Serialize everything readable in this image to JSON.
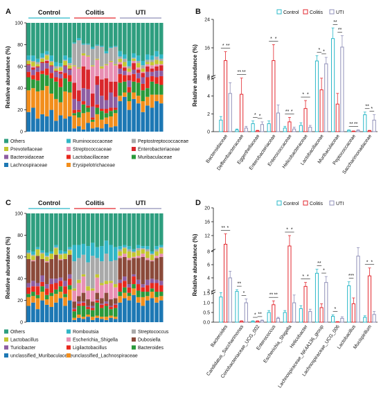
{
  "panel_labels": {
    "a": "A",
    "b": "B",
    "c": "C",
    "d": "D"
  },
  "chart_data": [
    {
      "panel": "A",
      "type": "bar",
      "stacked": true,
      "ylabel": "Relative abundance (%)",
      "ylim": [
        0,
        100
      ],
      "yticks": [
        "0",
        "20",
        "40",
        "60",
        "80",
        "100"
      ],
      "groups": [
        "Control",
        "Colitis",
        "UTI"
      ],
      "samples_per_group": 10,
      "legend": [
        "Others",
        "Ruminococcaceae",
        "Peptostreptococcaceae",
        "Prevotellaceae",
        "Streptococcaceae",
        "Enterobacteriaceae",
        "Bacteroidaceae",
        "Lactobacillaceae",
        "Muribaculaceae",
        "Lachnospiraceae",
        "Erysipelotrichaceae"
      ],
      "colors": [
        "#2e9e7f",
        "#31b6c6",
        "#a9a9a9",
        "#c4c631",
        "#e88fb3",
        "#d9262b",
        "#8e5ea2",
        "#e8281d",
        "#2a9a3b",
        "#1d78b4",
        "#f28e1c"
      ],
      "series": [
        {
          "name": "Lachnospiraceae",
          "values": [
            18,
            22,
            12,
            16,
            14,
            20,
            10,
            15,
            12,
            14,
            3,
            5,
            2,
            8,
            3,
            4,
            3,
            7,
            4,
            5,
            28,
            32,
            20,
            30,
            26,
            18,
            24,
            22,
            28,
            26
          ]
        },
        {
          "name": "Erysipelotrichaceae",
          "values": [
            20,
            18,
            25,
            22,
            28,
            15,
            20,
            12,
            25,
            22,
            12,
            8,
            15,
            10,
            6,
            12,
            8,
            6,
            10,
            12,
            5,
            4,
            8,
            6,
            7,
            10,
            8,
            12,
            6,
            8
          ]
        },
        {
          "name": "Muribaculaceae",
          "values": [
            12,
            8,
            10,
            15,
            10,
            14,
            16,
            14,
            12,
            10,
            2,
            5,
            8,
            4,
            2,
            6,
            8,
            4,
            5,
            3,
            12,
            10,
            8,
            10,
            12,
            10,
            8,
            12,
            10,
            9
          ]
        },
        {
          "name": "Lactobacillaceae",
          "values": [
            5,
            4,
            8,
            3,
            6,
            5,
            4,
            8,
            5,
            6,
            3,
            2,
            3,
            2,
            2,
            3,
            2,
            4,
            3,
            2,
            8,
            6,
            5,
            7,
            4,
            6,
            10,
            5,
            6,
            8
          ]
        },
        {
          "name": "Bacteroidaceae",
          "values": [
            6,
            5,
            4,
            7,
            5,
            6,
            5,
            4,
            6,
            5,
            10,
            8,
            12,
            15,
            10,
            18,
            12,
            8,
            14,
            10,
            5,
            4,
            6,
            4,
            5,
            6,
            5,
            4,
            6,
            5
          ]
        },
        {
          "name": "Enterobacteriaceae",
          "values": [
            1,
            2,
            1,
            1,
            2,
            1,
            1,
            2,
            1,
            1,
            15,
            10,
            20,
            18,
            12,
            8,
            15,
            20,
            10,
            14,
            4,
            3,
            5,
            6,
            3,
            4,
            5,
            3,
            4,
            5
          ]
        },
        {
          "name": "Streptococcaceae",
          "values": [
            0,
            1,
            0,
            0,
            1,
            0,
            0,
            1,
            0,
            0,
            15,
            20,
            10,
            12,
            25,
            15,
            10,
            12,
            18,
            15,
            2,
            1,
            3,
            2,
            2,
            1,
            2,
            3,
            2,
            1
          ]
        },
        {
          "name": "Prevotellaceae",
          "values": [
            3,
            4,
            2,
            3,
            4,
            3,
            2,
            3,
            4,
            3,
            1,
            1,
            2,
            1,
            1,
            1,
            2,
            1,
            1,
            1,
            3,
            4,
            3,
            2,
            4,
            3,
            2,
            3,
            4,
            3
          ]
        },
        {
          "name": "Peptostreptococcaceae",
          "values": [
            1,
            1,
            2,
            1,
            1,
            1,
            2,
            1,
            1,
            2,
            20,
            25,
            8,
            10,
            15,
            12,
            18,
            10,
            12,
            16,
            2,
            3,
            2,
            1,
            2,
            3,
            2,
            2,
            3,
            2
          ]
        },
        {
          "name": "Ruminococcaceae",
          "values": [
            4,
            5,
            3,
            4,
            3,
            5,
            4,
            3,
            4,
            5,
            1,
            2,
            1,
            1,
            2,
            1,
            1,
            2,
            1,
            1,
            5,
            4,
            5,
            4,
            5,
            4,
            5,
            4,
            5,
            4
          ]
        }
      ]
    },
    {
      "panel": "B",
      "type": "bar",
      "ylabel": "Relative abundance (%)",
      "broken_axis": {
        "upper": [
          8,
          24
        ],
        "lower": [
          0,
          6
        ]
      },
      "yticks": [
        "0",
        "2",
        "4",
        "6",
        "8",
        "16",
        "24"
      ],
      "categories": [
        "Bacteroidaceae",
        "Defferribacteraceae",
        "Eggerthellaceae",
        "Enterobacteriaceae",
        "Enterococcaceae",
        "Helicobacteraceae",
        "Lactobacillaceae",
        "Muribaculaceae",
        "Peptococcaceae",
        "Saccharimonadaceae"
      ],
      "series": [
        {
          "name": "Control",
          "color": "#29b8c8",
          "values": [
            1.3,
            0.2,
            0.9,
            0.9,
            0.4,
            0.7,
            12.3,
            18.6,
            0.15,
            1.9
          ],
          "errors": [
            0.4,
            0.1,
            0.3,
            0.3,
            0.2,
            0.3,
            1.5,
            3.0,
            0.05,
            0.3
          ]
        },
        {
          "name": "Colitis",
          "color": "#e3262d",
          "values": [
            12.4,
            4.2,
            0.1,
            12.4,
            1.1,
            2.6,
            4.7,
            3.1,
            0.05,
            0.1
          ],
          "errors": [
            2.5,
            2.0,
            0.05,
            4.5,
            0.5,
            0.9,
            1.4,
            1.2,
            0.03,
            0.05
          ]
        },
        {
          "name": "UTI",
          "color": "#8f8fb8",
          "values": [
            4.3,
            0.4,
            0.8,
            2.1,
            0.3,
            0.5,
            11.5,
            16.2,
            0.15,
            1.3
          ],
          "errors": [
            1.2,
            0.2,
            0.3,
            0.9,
            0.2,
            0.2,
            1.8,
            3.2,
            0.05,
            0.6
          ]
        }
      ],
      "significance": [
        [
          "*",
          "**"
        ],
        [
          "**",
          "**"
        ],
        [
          "*",
          "*"
        ],
        [
          "*",
          "*"
        ],
        [
          "**",
          "*"
        ],
        [
          "*",
          "*"
        ],
        [
          "*",
          "*"
        ],
        [
          "**",
          "**"
        ],
        [
          "**",
          "**"
        ],
        [
          "**",
          "*"
        ]
      ]
    },
    {
      "panel": "C",
      "type": "bar",
      "stacked": true,
      "ylabel": "Relative abundance (%)",
      "ylim": [
        0,
        100
      ],
      "yticks": [
        "0",
        "20",
        "40",
        "60",
        "80",
        "100"
      ],
      "groups": [
        "Control",
        "Colitis",
        "UTI"
      ],
      "samples_per_group": 10,
      "legend": [
        "Others",
        "Romboutsia",
        "Streptococcus",
        "Lactobacillus",
        "Escherichia_Shigella",
        "Dubosiella",
        "Turicibacter",
        "Ligilactobacillus",
        "Bacteroides",
        "unclassified_Muribaculaceae",
        "unclassified_Lachnospiraceae"
      ],
      "colors": [
        "#2e9e7f",
        "#31b6c6",
        "#a9a9a9",
        "#c4c631",
        "#e88fb3",
        "#8b4a3a",
        "#8e5ea2",
        "#e8281d",
        "#2a9a3b",
        "#1d78b4",
        "#f28e1c"
      ],
      "series": [
        {
          "name": "unclassified_Muribaculaceae",
          "values": [
            15,
            18,
            12,
            20,
            16,
            14,
            18,
            22,
            15,
            20,
            2,
            4,
            3,
            5,
            2,
            4,
            3,
            2,
            4,
            3,
            18,
            22,
            20,
            25,
            18,
            15,
            20,
            22,
            18,
            20
          ]
        },
        {
          "name": "unclassified_Lachnospiraceae",
          "values": [
            8,
            6,
            10,
            8,
            5,
            10,
            8,
            6,
            8,
            10,
            2,
            3,
            2,
            2,
            3,
            2,
            2,
            3,
            2,
            2,
            6,
            5,
            4,
            6,
            5,
            8,
            4,
            6,
            5,
            4
          ]
        },
        {
          "name": "Bacteroides",
          "values": [
            3,
            4,
            3,
            5,
            4,
            3,
            4,
            5,
            3,
            4,
            6,
            8,
            10,
            5,
            6,
            12,
            8,
            10,
            6,
            8,
            4,
            5,
            3,
            4,
            6,
            5,
            4,
            3,
            5,
            4
          ]
        },
        {
          "name": "Ligilactobacillus",
          "values": [
            6,
            5,
            8,
            4,
            6,
            8,
            6,
            5,
            7,
            6,
            2,
            2,
            3,
            2,
            2,
            2,
            3,
            2,
            2,
            3,
            8,
            6,
            5,
            7,
            6,
            4,
            6,
            5,
            8,
            6
          ]
        },
        {
          "name": "Turicibacter",
          "values": [
            4,
            5,
            3,
            6,
            4,
            5,
            4,
            3,
            5,
            4,
            1,
            2,
            1,
            1,
            2,
            1,
            1,
            2,
            1,
            1,
            3,
            4,
            3,
            2,
            4,
            3,
            5,
            4,
            3,
            4
          ]
        },
        {
          "name": "Dubosiella",
          "values": [
            22,
            18,
            25,
            15,
            20,
            18,
            22,
            16,
            20,
            18,
            6,
            5,
            8,
            6,
            4,
            6,
            5,
            8,
            6,
            5,
            20,
            18,
            22,
            15,
            20,
            25,
            18,
            16,
            20,
            22
          ]
        },
        {
          "name": "Escherichia_Shigella",
          "values": [
            0,
            1,
            0,
            0,
            1,
            0,
            0,
            1,
            0,
            0,
            10,
            12,
            15,
            8,
            10,
            14,
            12,
            8,
            15,
            10,
            2,
            3,
            2,
            1,
            2,
            3,
            2,
            1,
            2,
            3
          ]
        },
        {
          "name": "Lactobacillus",
          "values": [
            5,
            4,
            6,
            5,
            4,
            5,
            6,
            4,
            5,
            4,
            2,
            3,
            2,
            4,
            2,
            3,
            2,
            3,
            2,
            3,
            4,
            5,
            6,
            4,
            5,
            4,
            6,
            5,
            4,
            5
          ]
        },
        {
          "name": "Streptococcus",
          "values": [
            1,
            1,
            0,
            1,
            1,
            0,
            1,
            1,
            0,
            1,
            25,
            20,
            18,
            22,
            30,
            15,
            20,
            25,
            18,
            22,
            2,
            1,
            2,
            1,
            2,
            1,
            2,
            1,
            2,
            1
          ]
        },
        {
          "name": "Romboutsia",
          "values": [
            2,
            3,
            2,
            2,
            3,
            2,
            2,
            3,
            2,
            2,
            15,
            12,
            10,
            15,
            12,
            10,
            14,
            12,
            15,
            12,
            3,
            2,
            3,
            2,
            3,
            2,
            3,
            2,
            3,
            2
          ]
        }
      ]
    },
    {
      "panel": "D",
      "type": "bar",
      "ylabel": "Relative abundance (%)",
      "broken_axis": {
        "upper": [
          8,
          20
        ],
        "lower": [
          0,
          1.5
        ]
      },
      "yticks": [
        "0.0",
        "0.5",
        "1.0",
        "1.5",
        "2",
        "4",
        "6",
        "8",
        "12",
        "16",
        "20"
      ],
      "categories": [
        "Bacteroides",
        "Candidatus_Saccharimonas",
        "Coriobacteriaceae_UCG_002",
        "Enterococcus",
        "Escherichia_Shigella",
        "Helicobacter",
        "Lachnospiraceae_NK4A136_group",
        "Lachnospiraceae_UCG_006",
        "Lactobacillus",
        "Mucispirillum"
      ],
      "series": [
        {
          "name": "Control",
          "color": "#29b8c8",
          "values": [
            1.3,
            1.9,
            0.05,
            0.5,
            0.5,
            0.7,
            4.7,
            0.3,
            2.8,
            0.25
          ],
          "errors": [
            0.3,
            0.3,
            0.02,
            0.1,
            0.1,
            0.15,
            0.6,
            0.08,
            0.6,
            0.08
          ]
        },
        {
          "name": "Colitis",
          "color": "#e3262d",
          "values": [
            9.5,
            0.05,
            0.05,
            0.9,
            9.0,
            2.7,
            0.75,
            0.02,
            0.95,
            4.3
          ],
          "errors": [
            3.0,
            0.02,
            0.02,
            0.2,
            3.0,
            0.6,
            0.2,
            0.01,
            0.3,
            1.2
          ]
        },
        {
          "name": "UTI",
          "color": "#8f8fb8",
          "values": [
            4.0,
            1.0,
            0.08,
            0.2,
            1.0,
            0.55,
            3.3,
            0.2,
            7.3,
            0.4
          ],
          "errors": [
            1.0,
            0.2,
            0.03,
            0.05,
            0.4,
            0.12,
            0.9,
            0.08,
            1.2,
            0.15
          ]
        }
      ],
      "significance": [
        [
          "**",
          "*"
        ],
        [
          "**",
          "*"
        ],
        [
          "*",
          "**"
        ],
        [
          "**",
          "**"
        ],
        [
          "*",
          "*"
        ],
        [
          "*",
          "*"
        ],
        [
          "**",
          "*"
        ],
        [
          "*",
          ""
        ],
        [
          "***",
          ""
        ],
        [
          "*",
          "*"
        ]
      ]
    }
  ]
}
